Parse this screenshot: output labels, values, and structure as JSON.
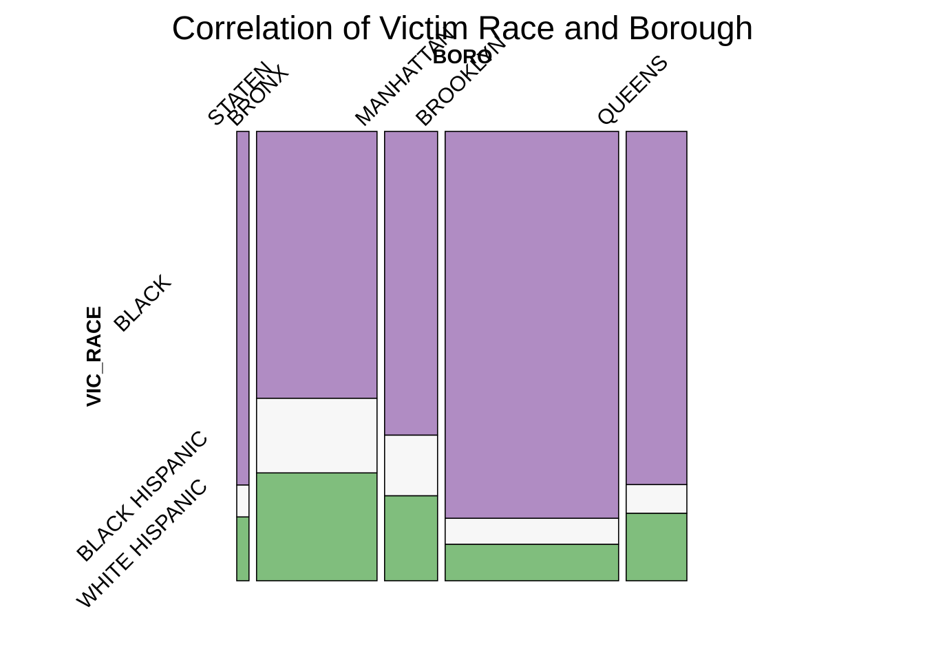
{
  "chart_data": {
    "type": "mosaic",
    "title": "Correlation of Victim Race and Borough",
    "x_variable": "BORO",
    "y_variable": "VIC_RACE",
    "categories": [
      "STATEN",
      "BRONX",
      "MANHATTAN",
      "BROOKLYN",
      "QUEENS"
    ],
    "column_share": [
      0.027,
      0.266,
      0.117,
      0.383,
      0.134
    ],
    "series": [
      {
        "name": "BLACK",
        "color": "#b08cc3",
        "values": [
          0.787,
          0.594,
          0.676,
          0.861,
          0.786
        ]
      },
      {
        "name": "BLACK HISPANIC",
        "color": "#f7f7f7",
        "values": [
          0.071,
          0.166,
          0.135,
          0.058,
          0.064
        ]
      },
      {
        "name": "WHITE HISPANIC",
        "color": "#80be7d",
        "values": [
          0.142,
          0.24,
          0.189,
          0.081,
          0.15
        ]
      }
    ]
  }
}
